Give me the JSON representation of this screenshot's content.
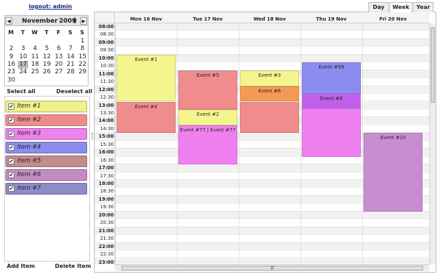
{
  "header": {
    "logout": "logout: admin"
  },
  "mini_calendar": {
    "month": "November",
    "year": "2009",
    "weekdays": [
      "M",
      "T",
      "W",
      "T",
      "F",
      "S",
      "S"
    ],
    "weeks": [
      [
        1
      ],
      [
        2,
        3,
        4,
        5,
        6,
        7,
        8
      ],
      [
        9,
        10,
        11,
        12,
        13,
        14,
        15
      ],
      [
        16,
        17,
        18,
        19,
        20,
        21,
        22
      ],
      [
        23,
        24,
        25,
        26,
        27,
        28,
        29
      ],
      [
        30
      ]
    ],
    "selected": 17
  },
  "selection": {
    "select_all": "Select all",
    "deselect_all": "Deselect all"
  },
  "items": [
    {
      "label": "Item #1",
      "color": "#f0f08c",
      "checked": true
    },
    {
      "label": "Item #2",
      "color": "#ee8c8c",
      "checked": true
    },
    {
      "label": "Item #3",
      "color": "#ee82ee",
      "checked": true
    },
    {
      "label": "Item #4",
      "color": "#8c8cee",
      "checked": true
    },
    {
      "label": "Item #5",
      "color": "#c28c8c",
      "checked": true
    },
    {
      "label": "Item #6",
      "color": "#c28cc2",
      "checked": true
    },
    {
      "label": "Item #7",
      "color": "#8c8cc8",
      "checked": true
    }
  ],
  "footer": {
    "add": "Add Item",
    "delete": "Delete Item"
  },
  "view_tabs": {
    "tabs": [
      "Day",
      "Week",
      "Year"
    ],
    "active": "Week"
  },
  "schedule": {
    "days": [
      "Mon 16 Nov",
      "Tue 17 Nov",
      "Wed 18 Nov",
      "Thu 19 Nov",
      "Fri 20 Nov"
    ],
    "times": [
      "08:00",
      "08:30",
      "09:00",
      "09:30",
      "10:00",
      "10:30",
      "11:00",
      "11:30",
      "12:00",
      "12:30",
      "13:00",
      "13:30",
      "14:00",
      "14:30",
      "15:00",
      "15:30",
      "16:00",
      "16:30",
      "17:00",
      "17:30",
      "18:00",
      "18:30",
      "19:00",
      "19:30",
      "20:00",
      "20:30",
      "21:00",
      "21:30",
      "22:00",
      "22:30",
      "23:00"
    ],
    "events": [
      {
        "title": "Event #1",
        "color": "#f5f58e"
      },
      {
        "title": "Event #4",
        "color": "#f08c8c"
      },
      {
        "title": "Event #5",
        "color": "#f08c8c"
      },
      {
        "title": "Event #2",
        "color": "#f5f58e"
      },
      {
        "title": "Event #77 | Event #77",
        "color": "#f080f0"
      },
      {
        "title": "Event #3",
        "color": "#f5f58e"
      },
      {
        "title": "Event #6",
        "color": "#f59a55"
      },
      {
        "title": "Event #99",
        "color": "#8c8cf0"
      },
      {
        "title": "Event #8",
        "color": "#f080f0"
      },
      {
        "title": "Event #10",
        "color": "#c88cd0"
      }
    ]
  }
}
